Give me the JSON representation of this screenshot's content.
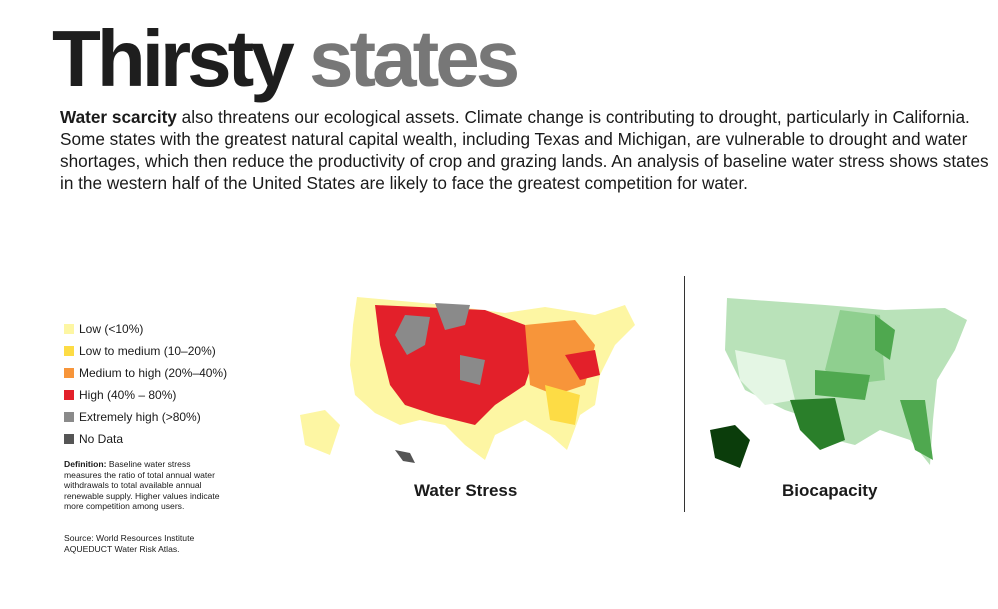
{
  "title": {
    "part1": "Thirsty",
    "part2": "states"
  },
  "intro": {
    "lead": "Water scarcity",
    "body": " also threatens our ecological assets. Climate change is contributing to drought, particularly in California. Some states with the greatest natural capital wealth, including Texas and Michigan, are vulnerable to drought and water shortages, which then reduce the productivity of crop and grazing lands. An analysis of baseline water stress shows states in the western half of the United States are likely to face the greatest competition for water."
  },
  "legend": {
    "items": [
      {
        "label": "Low (<10%)",
        "color": "#fdf6a3"
      },
      {
        "label": "Low to medium (10–20%)",
        "color": "#fddc45"
      },
      {
        "label": "Medium to high (20%–40%)",
        "color": "#f7953a"
      },
      {
        "label": "High (40% – 80%)",
        "color": "#e3202a"
      },
      {
        "label": "Extremely high (>80%)",
        "color": "#8a8a8a"
      },
      {
        "label": "No Data",
        "color": "#555555"
      }
    ]
  },
  "definition": {
    "label": "Definition:",
    "text": " Baseline water stress measures the ratio of total annual water withdrawals to total available annual renewable supply. Higher values indicate more competition among users."
  },
  "source": "Source: World Resources Institute AQUEDUCT Water Risk Atlas.",
  "maps": [
    {
      "caption": "Water Stress"
    },
    {
      "caption": "Biocapacity",
      "colors": [
        "#e4f6e4",
        "#b9e2b9",
        "#8fcf8f",
        "#4fa84f",
        "#2a7f2a",
        "#0b3d0b"
      ]
    }
  ]
}
